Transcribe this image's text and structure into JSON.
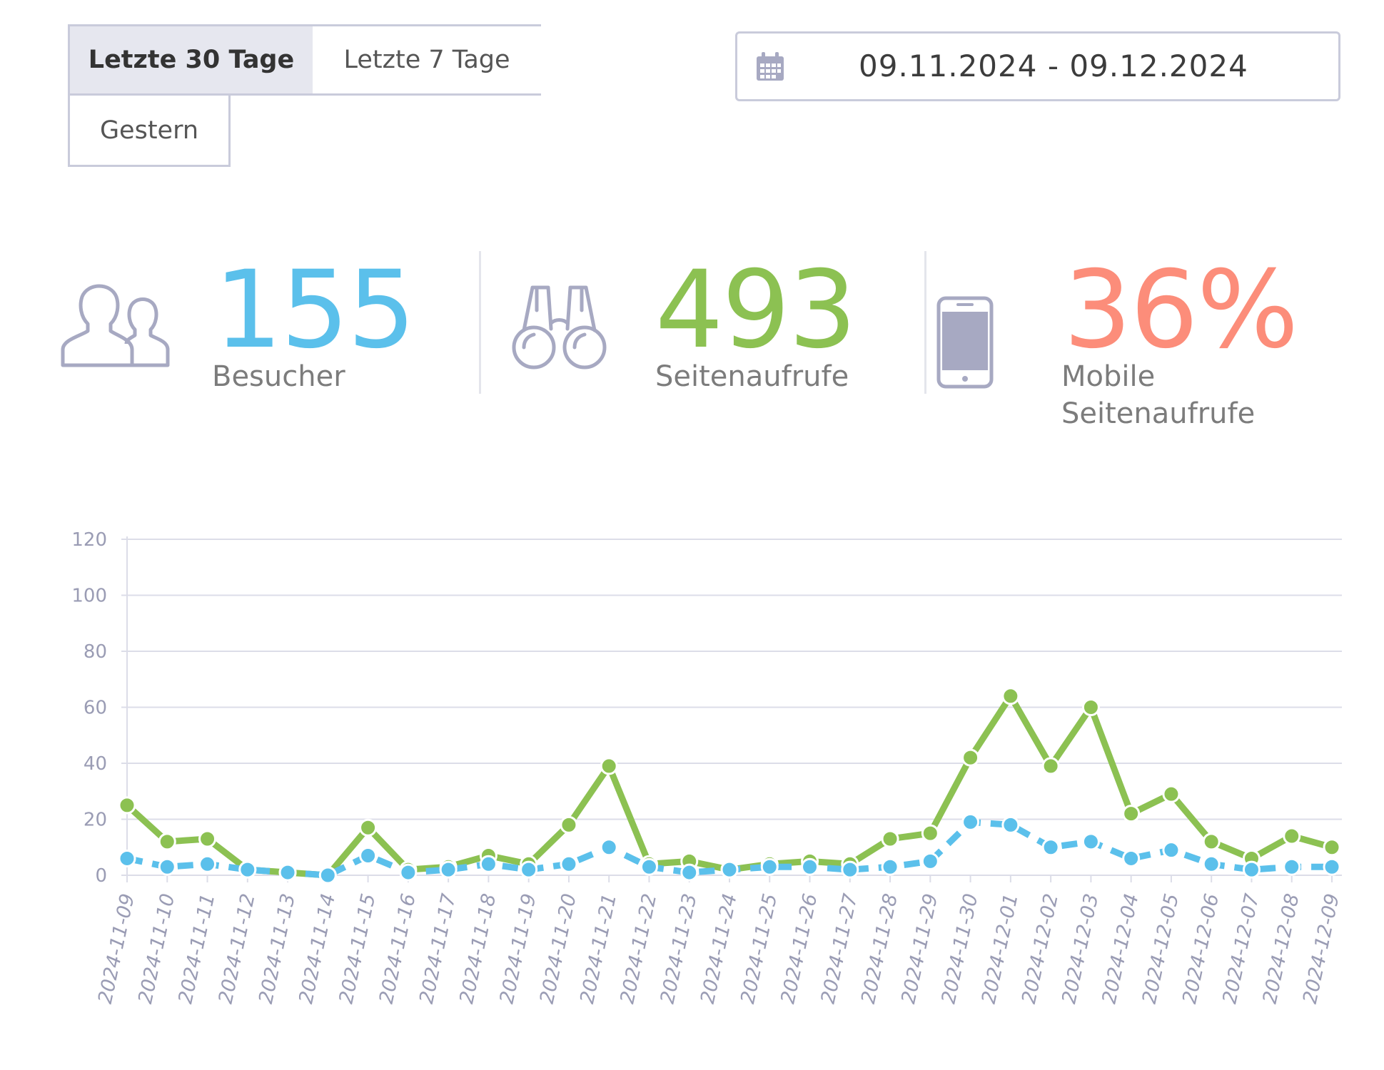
{
  "range_tabs": [
    {
      "label": "Letzte 30 Tage",
      "active": true
    },
    {
      "label": "Letzte 7 Tage",
      "active": false
    },
    {
      "label": "Gestern",
      "active": false
    }
  ],
  "date_range": {
    "icon": "calendar-icon",
    "value": "09.11.2024 - 09.12.2024"
  },
  "metrics": {
    "visitors": {
      "icon": "users-icon",
      "value": "155",
      "label": "Besucher",
      "color": "#5bc0eb"
    },
    "pageviews": {
      "icon": "binoculars-icon",
      "value": "493",
      "label": "Seitenaufrufe",
      "color": "#8cc152"
    },
    "mobile": {
      "icon": "smartphone-icon",
      "value": "36%",
      "label_line1": "Mobile",
      "label_line2": "Seitenaufrufe",
      "color": "#fc8d7a"
    }
  },
  "chart_data": {
    "type": "line",
    "categories": [
      "2024-11-09",
      "2024-11-10",
      "2024-11-11",
      "2024-11-12",
      "2024-11-13",
      "2024-11-14",
      "2024-11-15",
      "2024-11-16",
      "2024-11-17",
      "2024-11-18",
      "2024-11-19",
      "2024-11-20",
      "2024-11-21",
      "2024-11-22",
      "2024-11-23",
      "2024-11-24",
      "2024-11-25",
      "2024-11-26",
      "2024-11-27",
      "2024-11-28",
      "2024-11-29",
      "2024-11-30",
      "2024-12-01",
      "2024-12-02",
      "2024-12-03",
      "2024-12-04",
      "2024-12-05",
      "2024-12-06",
      "2024-12-07",
      "2024-12-08",
      "2024-12-09"
    ],
    "series": [
      {
        "color": "#8cc152",
        "style": "solid",
        "values": [
          25,
          12,
          13,
          2,
          1,
          0,
          17,
          2,
          3,
          7,
          4,
          18,
          39,
          4,
          5,
          2,
          4,
          5,
          4,
          13,
          15,
          42,
          64,
          39,
          60,
          22,
          29,
          12,
          6,
          14,
          10
        ]
      },
      {
        "color": "#5bc0eb",
        "style": "dashed",
        "values": [
          6,
          3,
          4,
          2,
          1,
          0,
          7,
          1,
          2,
          4,
          2,
          4,
          10,
          3,
          1,
          2,
          3,
          3,
          2,
          3,
          5,
          19,
          18,
          10,
          12,
          6,
          9,
          4,
          2,
          3,
          3
        ]
      }
    ],
    "yticks": [
      0,
      20,
      40,
      60,
      80,
      100,
      120
    ],
    "ylim": [
      0,
      120
    ],
    "grid": true
  }
}
